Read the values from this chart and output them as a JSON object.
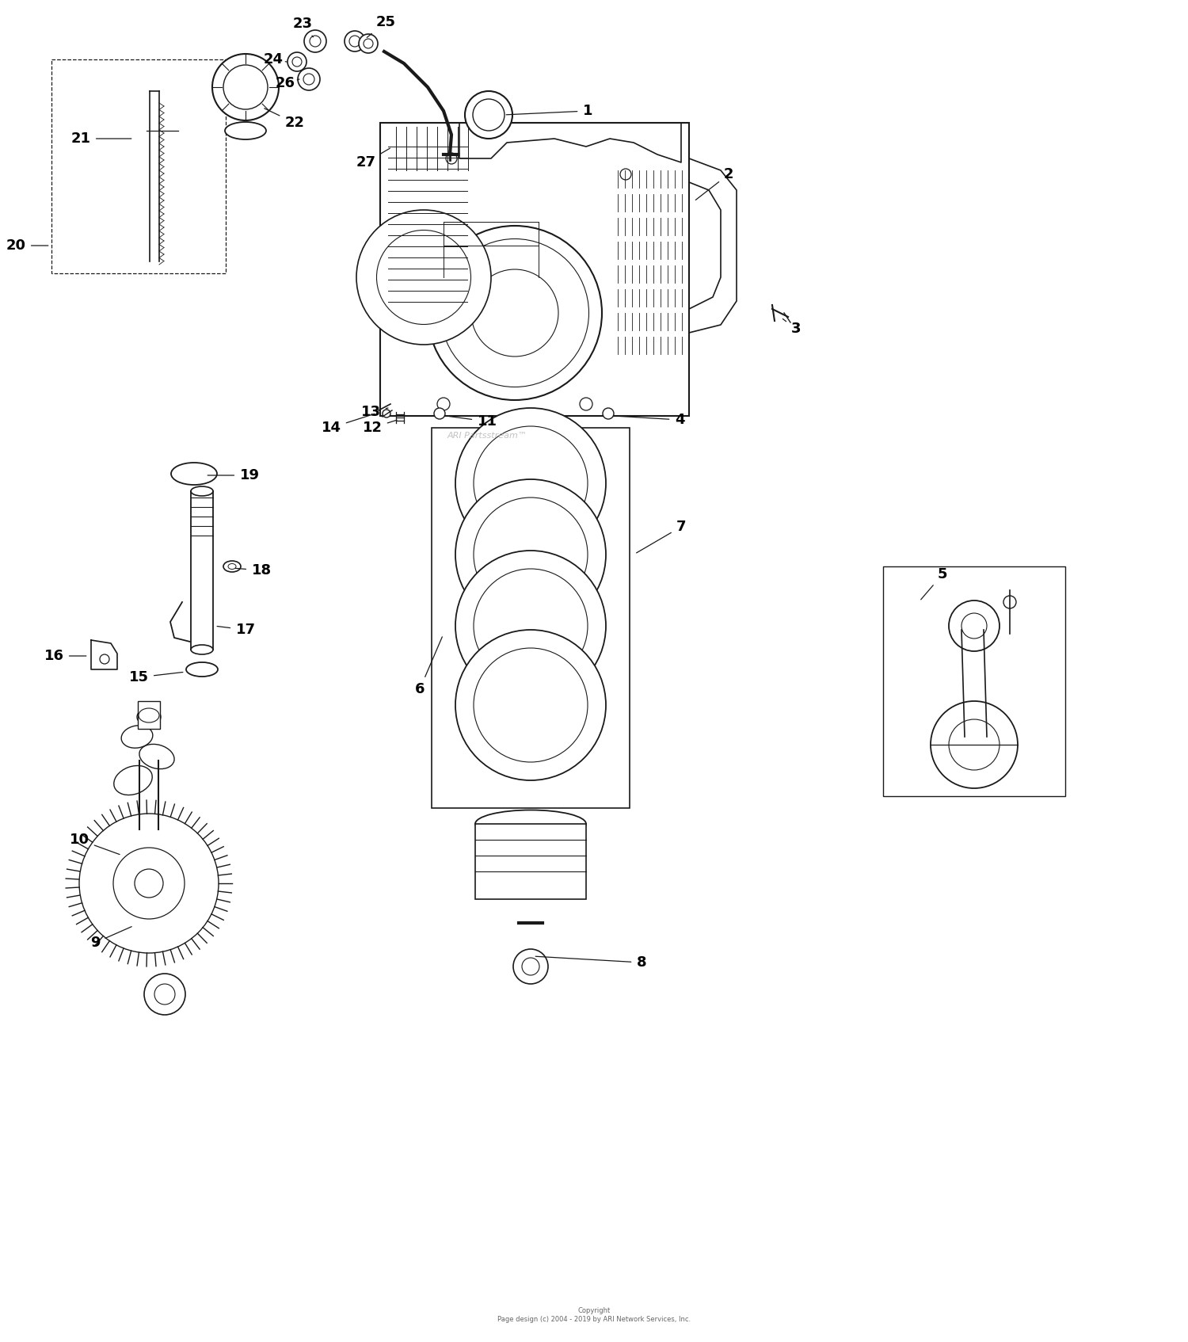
{
  "bg_color": "#ffffff",
  "line_color": "#1a1a1a",
  "label_color": "#000000",
  "fig_width": 15.0,
  "fig_height": 16.94,
  "copyright_text": "Copyright\nPage design (c) 2004 - 2019 by ARI Network Services, Inc.",
  "watermark_text": "ARI Partsstream™",
  "label_fontsize": 13,
  "label_fontweight": "bold"
}
